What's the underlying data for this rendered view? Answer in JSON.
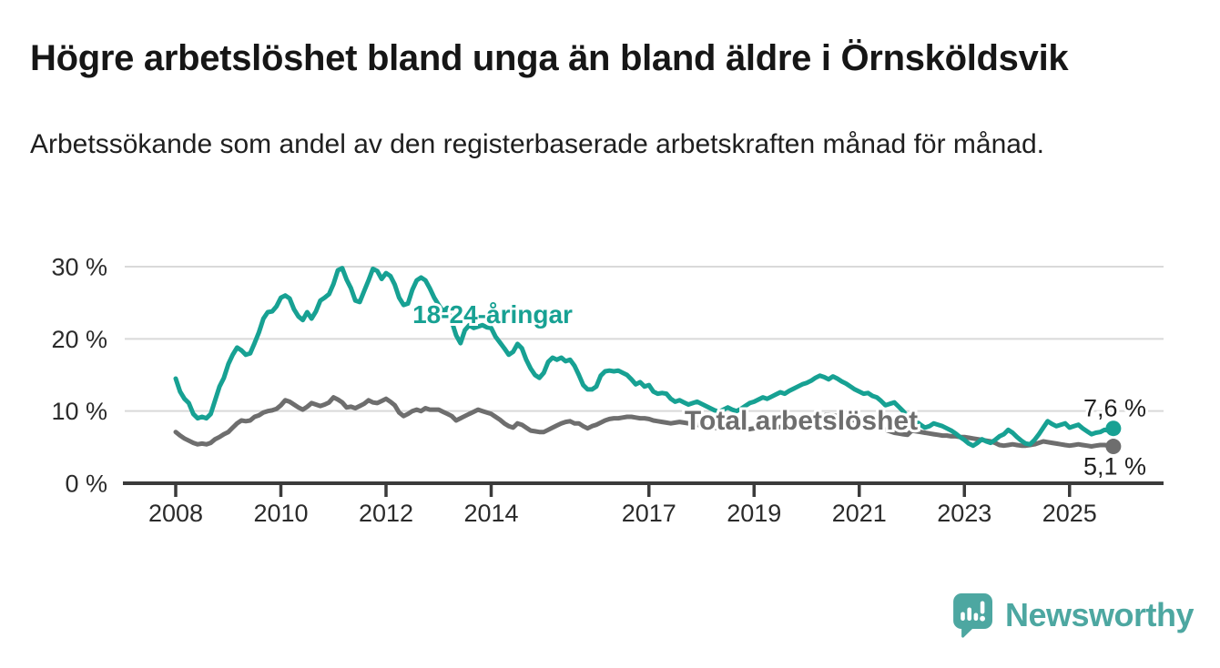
{
  "header": {
    "title": "Högre arbetslöshet bland unga än bland äldre i Örnsköldsvik",
    "subtitle": "Arbetssökande som andel av den registerbaserade arbetskraften månad för månad."
  },
  "logo": {
    "brand": "Newsworthy",
    "icon": "newsworthy-chart-bubble-icon"
  },
  "colors": {
    "brand": "#4da7a1",
    "youth": "#17a193",
    "total": "#6e6e6e",
    "grid": "#d9d9d9",
    "axis": "#3b3b3b",
    "text_dark": "#161616",
    "text_body": "#1f1f1f",
    "tick_label": "#2b2b2b"
  },
  "chart_data": {
    "type": "line",
    "title": "Högre arbetslöshet bland unga än bland äldre i Örnsköldsvik",
    "subtitle": "Arbetssökande som andel av den registerbaserade arbetskraften månad för månad.",
    "unit": "percent of registered labour force",
    "x_start": {
      "year": 2008,
      "month": 1
    },
    "frequency": "monthly",
    "x_end": {
      "year": 2025,
      "month": 11
    },
    "x_ticks": [
      2008,
      2010,
      2012,
      2014,
      2017,
      2019,
      2021,
      2023,
      2025
    ],
    "y_ticks": [
      {
        "value": 0,
        "label": "0 %"
      },
      {
        "value": 10,
        "label": "10 %"
      },
      {
        "value": 20,
        "label": "20 %"
      },
      {
        "value": 30,
        "label": "30 %"
      }
    ],
    "ylim": [
      0,
      31.5
    ],
    "grid": "horizontal",
    "legend": "inline-labels",
    "series": [
      {
        "name": "18-24-åringar",
        "color": "#17a193",
        "end_label": "7,6 %",
        "end_value": 7.6,
        "values": [
          14.5,
          12.7,
          11.7,
          11.1,
          9.6,
          9.0,
          9.2,
          9.0,
          9.6,
          11.5,
          13.4,
          14.6,
          16.5,
          17.8,
          18.8,
          18.4,
          17.8,
          18.0,
          19.4,
          20.9,
          22.8,
          23.7,
          23.8,
          24.5,
          25.7,
          26.0,
          25.6,
          24.1,
          23.1,
          22.6,
          23.7,
          22.8,
          23.8,
          25.3,
          25.7,
          26.2,
          27.6,
          29.5,
          29.8,
          28.2,
          27.0,
          25.3,
          25.1,
          26.6,
          28.1,
          29.7,
          29.4,
          28.3,
          29.1,
          28.7,
          27.5,
          25.7,
          24.7,
          24.9,
          26.8,
          28.1,
          28.5,
          28.1,
          27.0,
          25.7,
          24.7,
          23.8,
          24.3,
          22.4,
          20.5,
          19.4,
          21.2,
          21.9,
          21.5,
          21.7,
          21.9,
          21.6,
          21.5,
          20.3,
          19.5,
          18.7,
          17.8,
          18.2,
          19.3,
          18.7,
          17.1,
          15.9,
          15.0,
          14.6,
          15.3,
          16.8,
          17.4,
          17.1,
          17.4,
          16.9,
          17.1,
          16.3,
          15.0,
          13.6,
          13.0,
          13.0,
          13.4,
          14.9,
          15.5,
          15.6,
          15.5,
          15.6,
          15.3,
          15.0,
          14.4,
          13.7,
          14.0,
          13.4,
          13.6,
          12.7,
          12.4,
          12.5,
          12.4,
          11.7,
          11.3,
          11.5,
          11.2,
          10.9,
          11.1,
          11.3,
          11.0,
          10.7,
          10.4,
          10.1,
          9.9,
          10.2,
          10.5,
          10.2,
          10.0,
          10.3,
          10.7,
          11.1,
          11.3,
          11.6,
          11.9,
          11.7,
          12.0,
          12.3,
          12.6,
          12.4,
          12.8,
          13.1,
          13.4,
          13.7,
          13.9,
          14.2,
          14.6,
          14.9,
          14.7,
          14.4,
          14.8,
          14.5,
          14.1,
          13.8,
          13.4,
          13.0,
          12.7,
          12.4,
          12.5,
          12.1,
          11.9,
          11.4,
          10.8,
          11.0,
          11.2,
          10.6,
          10.0,
          9.3,
          8.9,
          8.6,
          8.1,
          7.7,
          7.9,
          8.3,
          8.1,
          7.9,
          7.6,
          7.3,
          6.9,
          6.4,
          6.0,
          5.5,
          5.2,
          5.6,
          6.1,
          5.8,
          5.6,
          6.0,
          6.5,
          6.8,
          7.4,
          7.0,
          6.4,
          5.9,
          5.5,
          5.4,
          6.0,
          6.8,
          7.7,
          8.6,
          8.2,
          7.9,
          8.1,
          8.3,
          7.7,
          7.9,
          8.1,
          7.6,
          7.2,
          6.8,
          7.0,
          7.1,
          7.4,
          7.3,
          7.6
        ]
      },
      {
        "name": "Total arbetslöshet",
        "color": "#6e6e6e",
        "end_label": "5,1 %",
        "end_value": 5.1,
        "values": [
          7.1,
          6.6,
          6.2,
          5.9,
          5.6,
          5.4,
          5.5,
          5.4,
          5.6,
          6.1,
          6.4,
          6.8,
          7.1,
          7.7,
          8.3,
          8.7,
          8.6,
          8.7,
          9.2,
          9.4,
          9.8,
          10.0,
          10.1,
          10.3,
          10.8,
          11.5,
          11.3,
          10.9,
          10.5,
          10.2,
          10.6,
          11.1,
          10.9,
          10.7,
          10.9,
          11.2,
          11.9,
          11.6,
          11.2,
          10.5,
          10.6,
          10.4,
          10.7,
          11.0,
          11.5,
          11.2,
          11.1,
          11.4,
          11.7,
          11.3,
          10.8,
          9.8,
          9.3,
          9.6,
          10.0,
          10.2,
          10.0,
          10.4,
          10.2,
          10.2,
          10.2,
          9.9,
          9.6,
          9.3,
          8.7,
          9.0,
          9.3,
          9.6,
          9.9,
          10.2,
          10.0,
          9.8,
          9.6,
          9.2,
          8.8,
          8.3,
          7.9,
          7.7,
          8.3,
          8.1,
          7.7,
          7.3,
          7.2,
          7.1,
          7.1,
          7.4,
          7.7,
          8.0,
          8.3,
          8.5,
          8.6,
          8.3,
          8.3,
          7.9,
          7.6,
          7.9,
          8.1,
          8.4,
          8.7,
          8.9,
          9.0,
          9.0,
          9.1,
          9.2,
          9.2,
          9.1,
          9.0,
          9.0,
          8.9,
          8.7,
          8.6,
          8.5,
          8.4,
          8.3,
          8.4,
          8.5,
          8.4,
          8.3,
          8.2,
          8.1,
          8.0,
          7.9,
          7.8,
          7.7,
          7.6,
          7.5,
          7.6,
          7.7,
          7.6,
          7.5,
          7.4,
          7.5,
          7.6,
          7.7,
          7.6,
          7.5,
          7.6,
          7.7,
          7.8,
          7.9,
          7.8,
          7.9,
          8.0,
          8.1,
          8.3,
          8.5,
          8.9,
          9.2,
          9.4,
          9.5,
          9.4,
          9.3,
          9.1,
          9.0,
          8.8,
          8.7,
          8.6,
          8.4,
          8.2,
          8.0,
          7.8,
          7.6,
          7.4,
          7.2,
          7.0,
          6.9,
          6.8,
          6.7,
          7.3,
          7.2,
          7.1,
          7.0,
          6.9,
          6.8,
          6.7,
          6.6,
          6.6,
          6.5,
          6.5,
          6.4,
          6.4,
          6.3,
          6.2,
          6.1,
          6.0,
          5.9,
          5.8,
          5.6,
          5.3,
          5.2,
          5.3,
          5.4,
          5.3,
          5.2,
          5.2,
          5.3,
          5.4,
          5.6,
          5.8,
          5.7,
          5.6,
          5.5,
          5.4,
          5.3,
          5.2,
          5.3,
          5.4,
          5.3,
          5.2,
          5.1,
          5.2,
          5.3,
          5.3,
          5.2,
          5.1
        ]
      }
    ]
  }
}
